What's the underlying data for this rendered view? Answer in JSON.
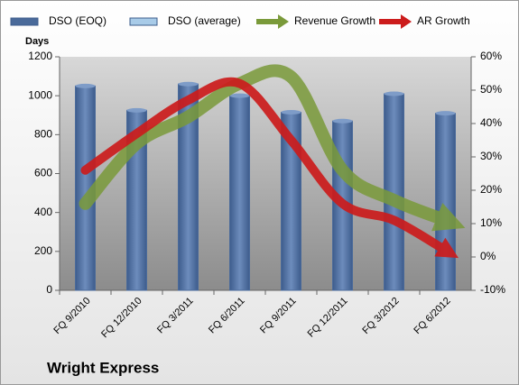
{
  "chart_data": {
    "type": "bar_line",
    "title": "Wright Express",
    "y_label": "Days",
    "categories": [
      "FQ 9/2010",
      "FQ 12/2010",
      "FQ 3/2011",
      "FQ 6/2011",
      "FQ 9/2011",
      "FQ 12/2011",
      "FQ 3/2012",
      "FQ 6/2012"
    ],
    "series": [
      {
        "name": "DSO (EOQ)",
        "color": "#4a6a9a",
        "values": [
          1050,
          925,
          1060,
          1000,
          915,
          870,
          1010,
          910
        ]
      },
      {
        "name": "DSO (average)",
        "color": "#a8cbe8",
        "values": [
          null,
          null,
          null,
          null,
          null,
          null,
          null,
          null
        ]
      },
      {
        "name": "Revenue Growth",
        "color": "#7a9a3a",
        "axis": "y2",
        "values": [
          16,
          34,
          42,
          52,
          54,
          26,
          17,
          11
        ]
      },
      {
        "name": "AR Growth",
        "color": "#cc1c1c",
        "axis": "y2",
        "values": [
          26,
          37,
          47,
          52,
          35,
          16,
          11,
          2
        ]
      }
    ],
    "ylim": [
      0,
      1200
    ],
    "yticks": [
      0,
      200,
      400,
      600,
      800,
      1000,
      1200
    ],
    "y2lim": [
      -10,
      60
    ],
    "y2ticks": [
      {
        "value": -10,
        "label": "-10%"
      },
      {
        "value": 0,
        "label": "0%"
      },
      {
        "value": 10,
        "label": "10%"
      },
      {
        "value": 20,
        "label": "20%"
      },
      {
        "value": 30,
        "label": "30%"
      },
      {
        "value": 40,
        "label": "40%"
      },
      {
        "value": 50,
        "label": "50%"
      },
      {
        "value": 60,
        "label": "60%"
      }
    ],
    "legend": "top"
  }
}
